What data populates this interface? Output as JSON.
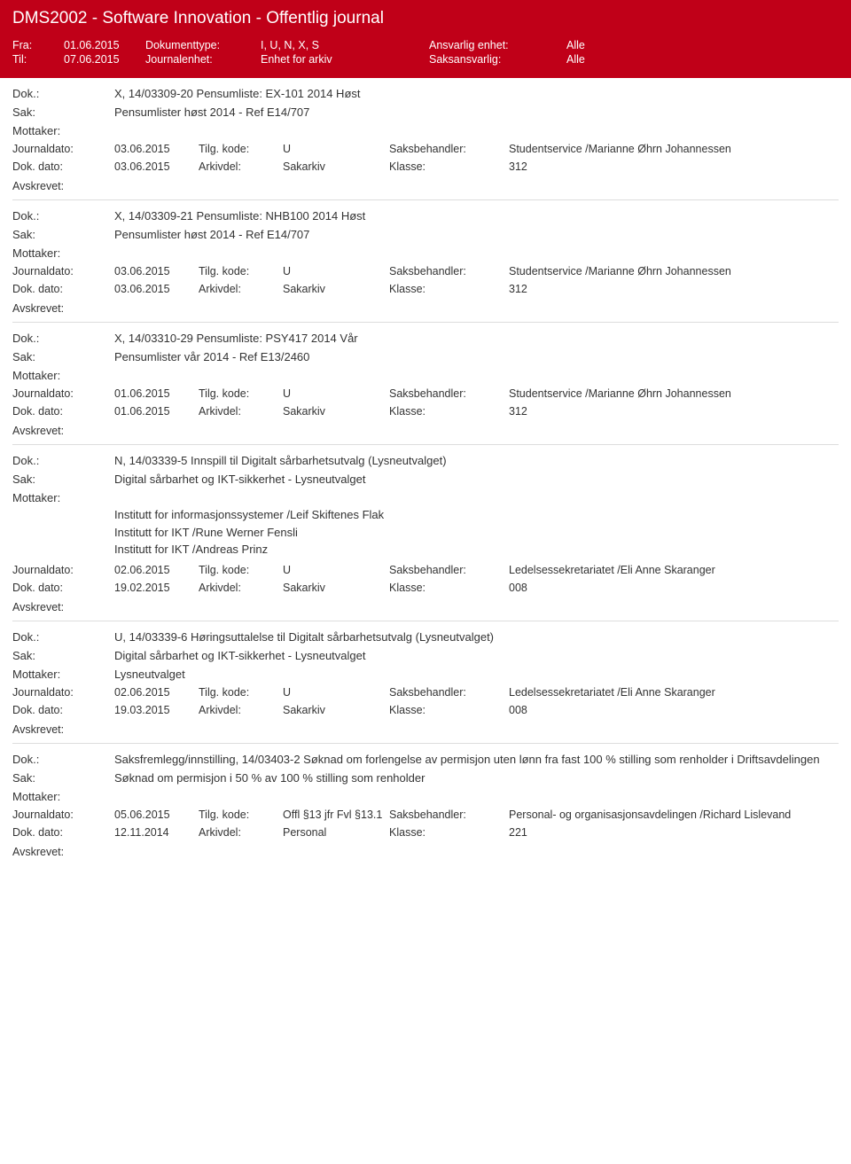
{
  "header": {
    "title": "DMS2002 - Software Innovation - Offentlig journal",
    "fra_label": "Fra:",
    "fra_value": "01.06.2015",
    "til_label": "Til:",
    "til_value": "07.06.2015",
    "doktype_label": "Dokumenttype:",
    "doktype_value": "I, U, N, X, S",
    "journalenhet_label": "Journalenhet:",
    "journalenhet_value": "Enhet for arkiv",
    "ansvarlig_label": "Ansvarlig enhet:",
    "ansvarlig_value": "Alle",
    "saks_label": "Saksansvarlig:",
    "saks_value": "Alle"
  },
  "labels": {
    "dok": "Dok.:",
    "sak": "Sak:",
    "mottaker": "Mottaker:",
    "journaldato": "Journaldato:",
    "dokdato": "Dok. dato:",
    "tilgkode": "Tilg. kode:",
    "arkivdel": "Arkivdel:",
    "saksbehandler": "Saksbehandler:",
    "klasse": "Klasse:",
    "avskrevet": "Avskrevet:"
  },
  "entries": [
    {
      "dok": "X, 14/03309-20 Pensumliste: EX-101 2014 Høst",
      "sak": "Pensumlister høst 2014 - Ref E14/707",
      "mottaker": [],
      "journaldato": "03.06.2015",
      "dokdato": "03.06.2015",
      "tilgkode": "U",
      "arkivdel": "Sakarkiv",
      "saksbehandler": "Studentservice /Marianne Øhrn Johannessen",
      "klasse": "312"
    },
    {
      "dok": "X, 14/03309-21 Pensumliste: NHB100 2014 Høst",
      "sak": "Pensumlister høst 2014 - Ref E14/707",
      "mottaker": [],
      "journaldato": "03.06.2015",
      "dokdato": "03.06.2015",
      "tilgkode": "U",
      "arkivdel": "Sakarkiv",
      "saksbehandler": "Studentservice /Marianne Øhrn Johannessen",
      "klasse": "312"
    },
    {
      "dok": "X, 14/03310-29 Pensumliste: PSY417 2014 Vår",
      "sak": "Pensumlister vår 2014 - Ref E13/2460",
      "mottaker": [],
      "journaldato": "01.06.2015",
      "dokdato": "01.06.2015",
      "tilgkode": "U",
      "arkivdel": "Sakarkiv",
      "saksbehandler": "Studentservice /Marianne Øhrn Johannessen",
      "klasse": "312"
    },
    {
      "dok": "N, 14/03339-5 Innspill til Digitalt sårbarhetsutvalg (Lysneutvalget)",
      "sak": "Digital sårbarhet og IKT-sikkerhet - Lysneutvalget",
      "mottaker": [
        "Institutt for informasjonssystemer /Leif Skiftenes Flak",
        "Institutt for IKT /Rune Werner Fensli",
        "Institutt for IKT /Andreas Prinz"
      ],
      "journaldato": "02.06.2015",
      "dokdato": "19.02.2015",
      "tilgkode": "U",
      "arkivdel": "Sakarkiv",
      "saksbehandler": "Ledelsessekretariatet /Eli Anne Skaranger",
      "klasse": "008"
    },
    {
      "dok": "U, 14/03339-6 Høringsuttalelse til Digitalt sårbarhetsutvalg (Lysneutvalget)",
      "sak": "Digital sårbarhet og IKT-sikkerhet - Lysneutvalget",
      "mottaker": [
        "Lysneutvalget"
      ],
      "journaldato": "02.06.2015",
      "dokdato": "19.03.2015",
      "tilgkode": "U",
      "arkivdel": "Sakarkiv",
      "saksbehandler": "Ledelsessekretariatet /Eli Anne Skaranger",
      "klasse": "008"
    },
    {
      "dok": "Saksfremlegg/innstilling, 14/03403-2 Søknad om forlengelse av permisjon uten lønn fra fast 100 % stilling som renholder i Driftsavdelingen",
      "sak": "Søknad om permisjon i 50 % av 100 % stilling som renholder",
      "mottaker": [],
      "journaldato": "05.06.2015",
      "dokdato": "12.11.2014",
      "tilgkode": "Offl §13 jfr Fvl §13.1",
      "arkivdel": "Personal",
      "saksbehandler": "Personal- og organisasjonsavdelingen /Richard Lislevand",
      "klasse": "221"
    }
  ]
}
